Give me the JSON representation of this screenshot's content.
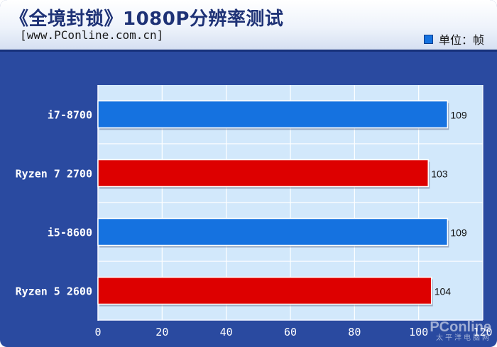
{
  "header": {
    "title": "《全境封锁》1080P分辨率测试",
    "subtitle": "[www.PConline.com.cn]",
    "legend_label": "单位：帧"
  },
  "watermark": {
    "logo": "PConline",
    "sub": "太平洋电脑网"
  },
  "colors": {
    "intel_blue": "#1572e0",
    "amd_red": "#dd0000",
    "plot_bg": "#d2e8fb",
    "frame_bg": "#2a4aa0"
  },
  "chart_data": {
    "type": "bar",
    "orientation": "horizontal",
    "categories": [
      "i7-8700",
      "Ryzen 7 2700",
      "i5-8600",
      "Ryzen 5 2600"
    ],
    "values": [
      109,
      103,
      109,
      104
    ],
    "bar_colors": [
      "#1572e0",
      "#dd0000",
      "#1572e0",
      "#dd0000"
    ],
    "xlim": [
      0,
      120
    ],
    "x_ticks": [
      "0",
      "20",
      "40",
      "60",
      "80",
      "100",
      "120"
    ],
    "unit": "帧",
    "grid": true,
    "legend": "top-right"
  }
}
